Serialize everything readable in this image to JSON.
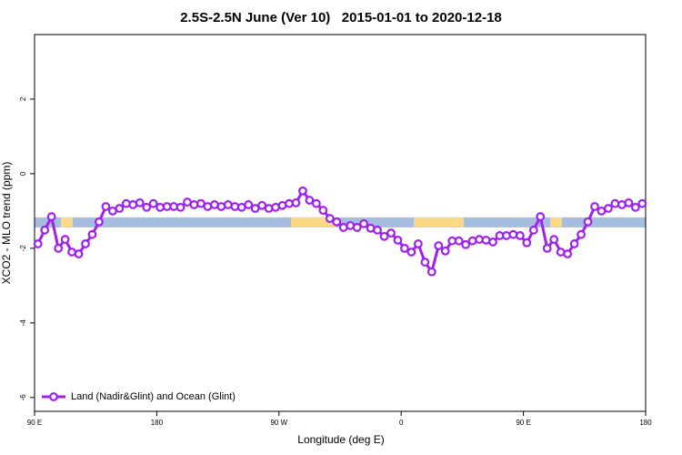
{
  "chart_data": {
    "type": "line",
    "title": "2.5S-2.5N June (Ver 10)   2015-01-01 to 2020-12-18",
    "xlabel": "Longitude (deg E)",
    "ylabel": "XCO2 - MLO trend (ppm)",
    "xlim": [
      90,
      540
    ],
    "ylim": [
      -6.37,
      3.73
    ],
    "xticks": [
      {
        "value": 90,
        "label": "90 E"
      },
      180,
      {
        "value": 270,
        "label": "90 W"
      },
      {
        "value": 360,
        "label": "0"
      },
      {
        "value": 450,
        "label": "90 E"
      },
      {
        "value": 540,
        "label": "180"
      }
    ],
    "yticks": [
      2,
      0,
      -2,
      -4,
      -6
    ],
    "legend": "bottom-left",
    "band": {
      "ylim": [
        -1.44,
        -1.17
      ],
      "color": "#a5bddf",
      "land_color": "#fdd882",
      "land_segments": [
        [
          109.4,
          118.1
        ],
        [
          278.8,
          312.3
        ],
        [
          369.2,
          406.1
        ],
        [
          469.7,
          478.4
        ]
      ]
    },
    "x": [
      92.5,
      97.5,
      102.5,
      107.5,
      112.5,
      117.5,
      122.5,
      127.5,
      132.5,
      137.5,
      142.5,
      147.5,
      152.5,
      157.5,
      162.5,
      167.5,
      172.5,
      177.5,
      182.5,
      187.5,
      192.5,
      197.5,
      202.5,
      207.5,
      212.5,
      217.5,
      222.5,
      227.5,
      232.5,
      237.5,
      242.5,
      247.5,
      252.5,
      257.5,
      262.5,
      267.5,
      272.5,
      277.5,
      282.5,
      287.5,
      292.5,
      297.5,
      302.5,
      307.5,
      312.5,
      317.5,
      322.5,
      327.5,
      332.5,
      337.5,
      342.5,
      347.5,
      352.5,
      357.5,
      362.5,
      367.5,
      372.5,
      377.5,
      382.5,
      387.5,
      392.5,
      397.5,
      402.5,
      407.5,
      412.5,
      417.5,
      422.5,
      427.5,
      432.5,
      437.5,
      442.5,
      447.5,
      452.5,
      457.5,
      462.5,
      467.5,
      472.5,
      477.5,
      482.5,
      487.5,
      492.5,
      497.5,
      502.5,
      507.5,
      512.5,
      517.5,
      522.5,
      527.5,
      532.5,
      537.5
    ],
    "series": [
      {
        "name": "Land (Nadir&Glint) and Ocean (Glint)",
        "color": "#a020f0",
        "values": [
          -1.88,
          -1.51,
          -1.15,
          -2.0,
          -1.76,
          -2.1,
          -2.15,
          -1.88,
          -1.63,
          -1.29,
          -0.88,
          -1.0,
          -0.93,
          -0.8,
          -0.83,
          -0.78,
          -0.9,
          -0.8,
          -0.9,
          -0.88,
          -0.88,
          -0.9,
          -0.76,
          -0.83,
          -0.8,
          -0.88,
          -0.83,
          -0.88,
          -0.83,
          -0.88,
          -0.9,
          -0.83,
          -0.93,
          -0.85,
          -0.93,
          -0.9,
          -0.85,
          -0.8,
          -0.78,
          -0.46,
          -0.71,
          -0.8,
          -0.98,
          -1.2,
          -1.29,
          -1.44,
          -1.39,
          -1.44,
          -1.34,
          -1.46,
          -1.51,
          -1.68,
          -1.59,
          -1.78,
          -2.0,
          -2.1,
          -1.88,
          -2.37,
          -2.63,
          -1.93,
          -2.07,
          -1.8,
          -1.8,
          -1.9,
          -1.8,
          -1.76,
          -1.78,
          -1.83,
          -1.66,
          -1.66,
          -1.63,
          -1.66,
          -1.85,
          -1.51,
          -1.15,
          -2.0,
          -1.76,
          -2.1,
          -2.15,
          -1.88,
          -1.63,
          -1.29,
          -0.88,
          -1.0,
          -0.93,
          -0.8,
          -0.83,
          -0.78,
          -0.9,
          -0.8
        ]
      }
    ]
  }
}
